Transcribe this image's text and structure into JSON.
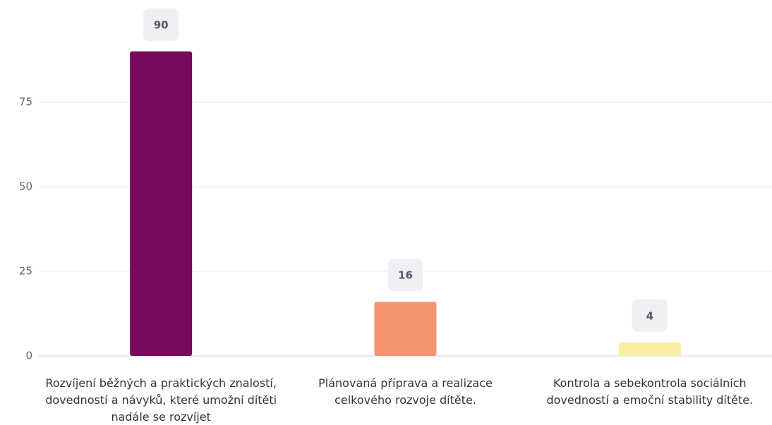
{
  "chart_data": {
    "type": "bar",
    "categories": [
      "Rozvíjení běžných a praktických znalostí, dovedností a návyků, které umožní dítěti nadále se rozvíjet",
      "Plánovaná příprava a realizace celkového rozvoje dítěte.",
      "Kontrola a sebekontrola sociálních dovedností a emoční stability dítěte."
    ],
    "values": [
      90,
      16,
      4
    ],
    "colors": [
      "#760a5c",
      "#f39570",
      "#f7ef9f"
    ],
    "ylim": [
      0,
      100
    ],
    "yticks": [
      0,
      25,
      50,
      75
    ],
    "grid": true
  }
}
